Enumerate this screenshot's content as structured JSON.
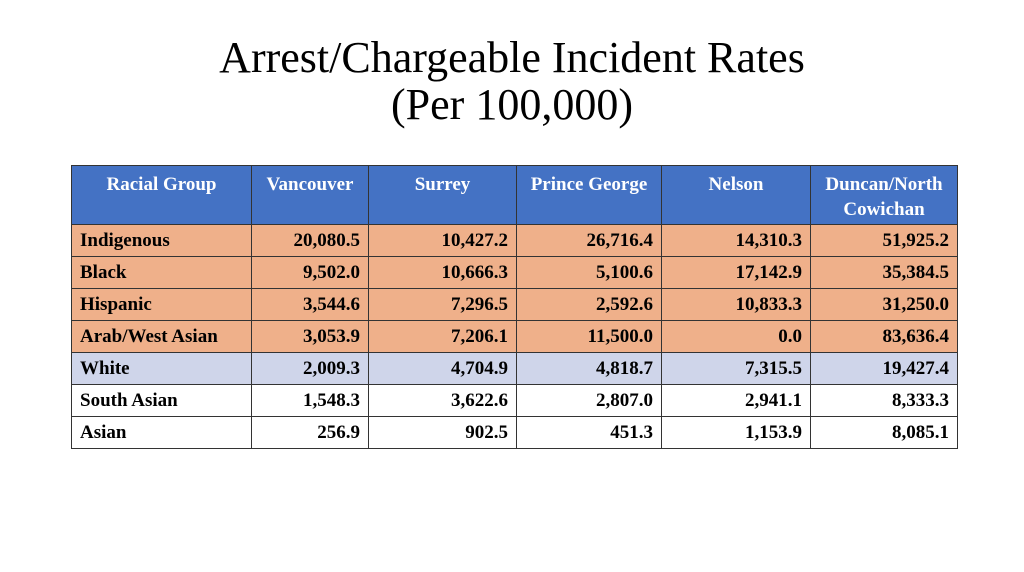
{
  "title": {
    "line1": "Arrest/Chargeable Incident Rates",
    "line2": "(Per 100,000)"
  },
  "table": {
    "headers": [
      "Racial Group",
      "Vancouver",
      "Surrey",
      "Prince George",
      "Nelson",
      "Duncan/North Cowichan"
    ],
    "rows": [
      {
        "group": "Indigenous",
        "style": "hl",
        "values": [
          "20,080.5",
          "10,427.2",
          "26,716.4",
          "14,310.3",
          "51,925.2"
        ]
      },
      {
        "group": "Black",
        "style": "hl",
        "values": [
          "9,502.0",
          "10,666.3",
          "5,100.6",
          "17,142.9",
          "35,384.5"
        ]
      },
      {
        "group": "Hispanic",
        "style": "hl",
        "values": [
          "3,544.6",
          "7,296.5",
          "2,592.6",
          "10,833.3",
          "31,250.0"
        ]
      },
      {
        "group": "Arab/West Asian",
        "style": "hl",
        "values": [
          "3,053.9",
          "7,206.1",
          "11,500.0",
          "0.0",
          "83,636.4"
        ]
      },
      {
        "group": "White",
        "style": "ref",
        "values": [
          "2,009.3",
          "4,704.9",
          "4,818.7",
          "7,315.5",
          "19,427.4"
        ]
      },
      {
        "group": "South Asian",
        "style": "plain",
        "values": [
          "1,548.3",
          "3,622.6",
          "2,807.0",
          "2,941.1",
          "8,333.3"
        ]
      },
      {
        "group": "Asian",
        "style": "plain",
        "values": [
          "256.9",
          "902.5",
          "451.3",
          "1,153.9",
          "8,085.1"
        ]
      }
    ]
  },
  "colors": {
    "header": "#4472C4",
    "highlight": "#EFB08A",
    "reference": "#CFD5EA"
  }
}
